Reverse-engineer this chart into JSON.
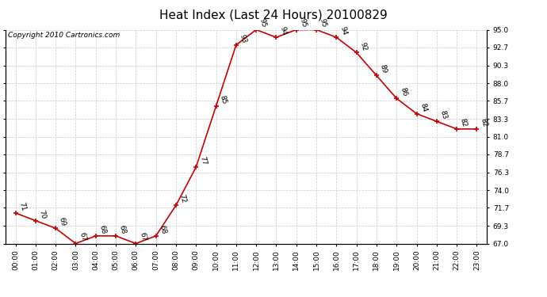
{
  "title": "Heat Index (Last 24 Hours) 20100829",
  "copyright": "Copyright 2010 Cartronics.com",
  "hours": [
    "00:00",
    "01:00",
    "02:00",
    "03:00",
    "04:00",
    "05:00",
    "06:00",
    "07:00",
    "08:00",
    "09:00",
    "10:00",
    "11:00",
    "12:00",
    "13:00",
    "14:00",
    "15:00",
    "16:00",
    "17:00",
    "18:00",
    "19:00",
    "20:00",
    "21:00",
    "22:00",
    "23:00"
  ],
  "values": [
    71,
    70,
    69,
    67,
    68,
    68,
    67,
    68,
    72,
    77,
    85,
    93,
    95,
    94,
    95,
    95,
    94,
    92,
    89,
    86,
    84,
    83,
    82,
    82
  ],
  "ylim_low": 67.0,
  "ylim_high": 95.0,
  "yticks": [
    67.0,
    69.3,
    71.7,
    74.0,
    76.3,
    78.7,
    81.0,
    83.3,
    85.7,
    88.0,
    90.3,
    92.7,
    95.0
  ],
  "line_color": "#cc0000",
  "marker_color": "#cc0000",
  "bg_color": "#ffffff",
  "grid_color": "#cccccc",
  "title_fontsize": 11,
  "copyright_fontsize": 6.5,
  "tick_fontsize": 6.5,
  "annotation_fontsize": 6.5
}
